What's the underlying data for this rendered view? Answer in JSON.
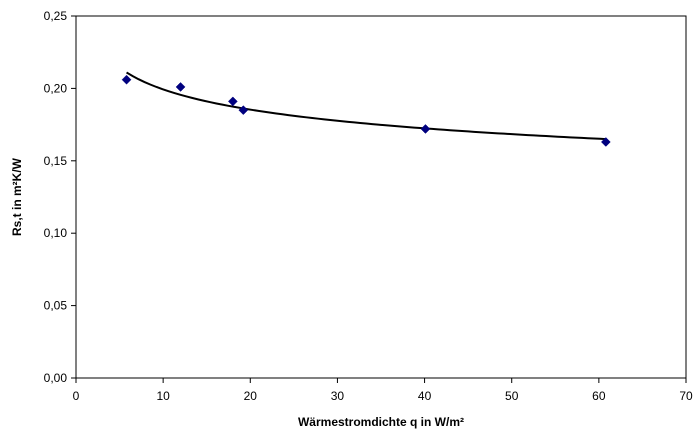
{
  "chart_data": {
    "type": "scatter",
    "xlabel": "Wärmestromdichte q in W/m²",
    "ylabel": "Rs,t in m²K/W",
    "xlim": [
      0,
      70
    ],
    "ylim": [
      0,
      0.25
    ],
    "x_ticks": [
      0,
      10,
      20,
      30,
      40,
      50,
      60,
      70
    ],
    "y_ticks": [
      0,
      0.05,
      0.1,
      0.15,
      0.2,
      0.25
    ],
    "x_tick_labels": [
      "0",
      "10",
      "20",
      "30",
      "40",
      "50",
      "60",
      "70"
    ],
    "y_tick_labels": [
      "0,00",
      "0,05",
      "0,10",
      "0,15",
      "0,20",
      "0,25"
    ],
    "grid": false,
    "legend": "none",
    "series": [
      {
        "marker": "diamond",
        "color": "#00007f",
        "x": [
          5.8,
          12.0,
          18.0,
          19.2,
          40.1,
          60.8
        ],
        "y": [
          0.206,
          0.201,
          0.191,
          0.185,
          0.172,
          0.163
        ]
      }
    ],
    "trendline": {
      "type": "power",
      "color": "#000000",
      "x_range": [
        5.8,
        60.8
      ],
      "points": [
        [
          5.8,
          0.211
        ],
        [
          19.2,
          0.186
        ],
        [
          60.8,
          0.165
        ]
      ]
    }
  }
}
